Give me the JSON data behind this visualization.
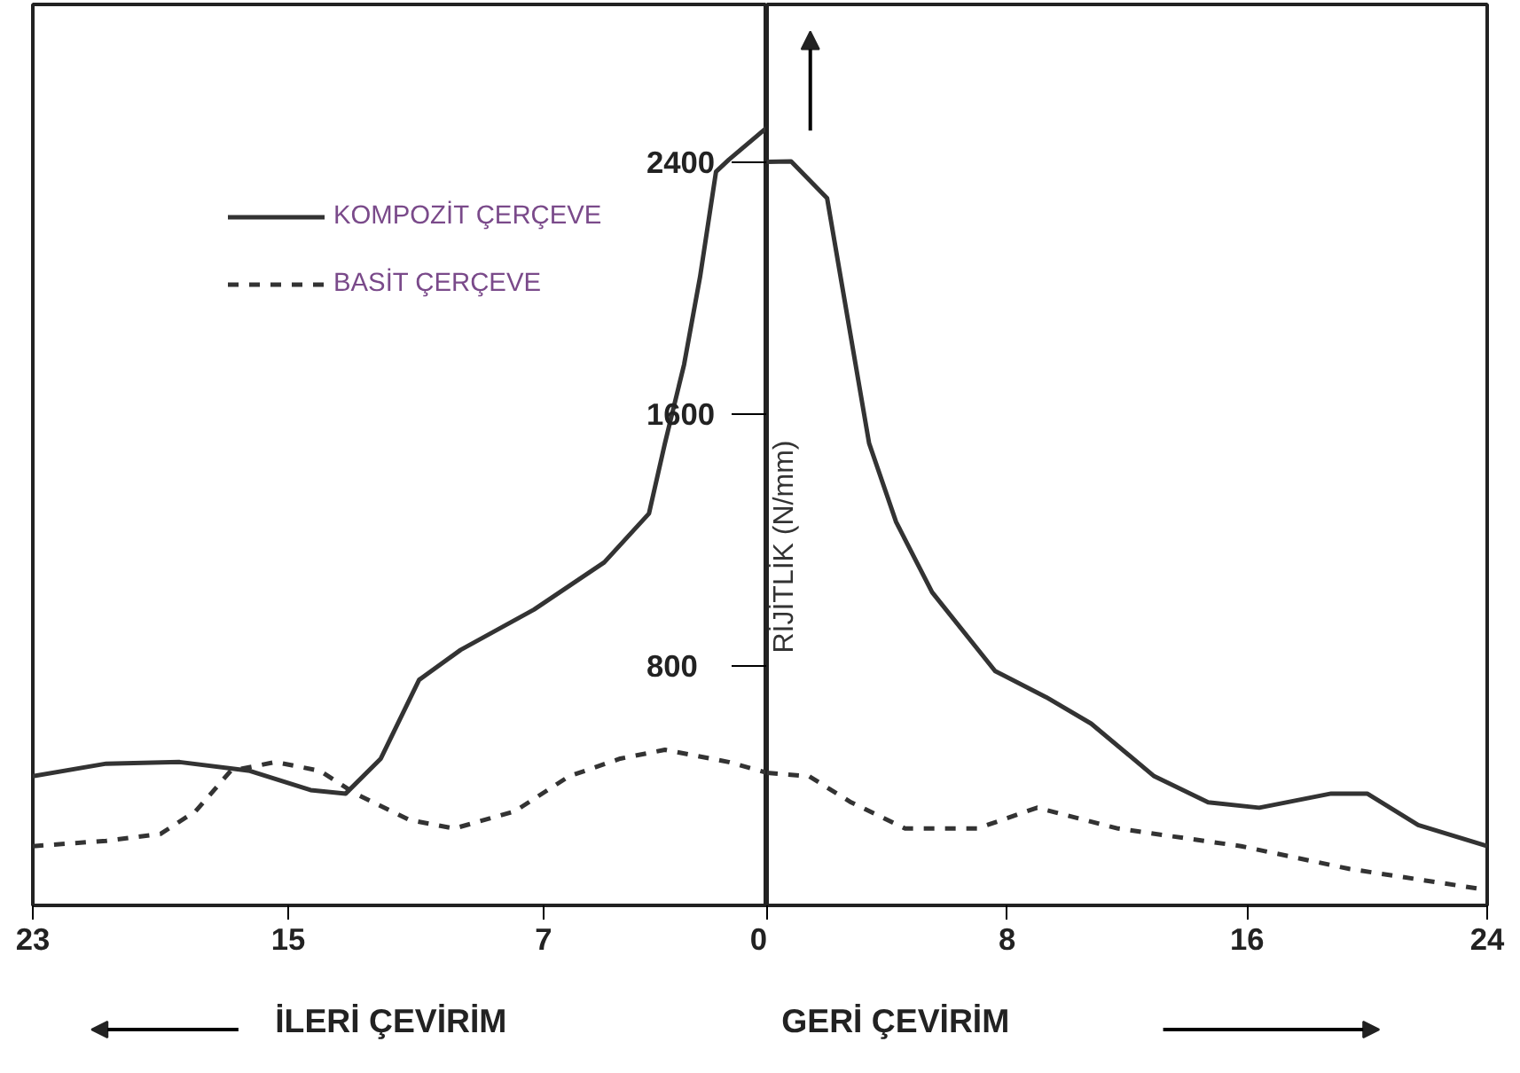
{
  "chart_data": [
    {
      "type": "line",
      "legend": "top left",
      "grid": false,
      "tick_labels": true,
      "xlim": [
        23,
        0
      ],
      "xticks": [
        23,
        15,
        7,
        0
      ],
      "ylim": [
        40,
        2900
      ],
      "yticks": [
        800,
        1600,
        2400
      ],
      "annotations": [
        "İLERİ ÇEVİRİM"
      ],
      "series": [
        {
          "name": "KOMPOZİT ÇERÇEVE",
          "color": "#333333",
          "line_style": "solid",
          "x": [
            23.0,
            20.7,
            18.4,
            16.2,
            14.3,
            13.2,
            12.1,
            10.9,
            9.6,
            7.3,
            5.1,
            3.7,
            3.2,
            2.6,
            2.1,
            1.6,
            1.2,
            0
          ],
          "values": [
            450,
            490,
            495,
            467,
            406,
            395,
            506,
            756,
            851,
            979,
            1129,
            1284,
            1507,
            1757,
            2035,
            2369,
            2407,
            2510
          ]
        },
        {
          "name": "BASİT ÇERÇEVE",
          "color": "#333333",
          "line_style": "dashed",
          "x": [
            23.0,
            20.7,
            19.0,
            17.9,
            16.8,
            15.4,
            14.0,
            12.9,
            11.2,
            9.8,
            7.9,
            6.2,
            4.6,
            3.2,
            1.2,
            0
          ],
          "values": [
            228,
            245,
            267,
            339,
            467,
            495,
            467,
            395,
            311,
            284,
            339,
            450,
            506,
            534,
            495,
            461
          ]
        }
      ]
    },
    {
      "type": "line",
      "ylabel": "RİJİTLİK (N/mm)",
      "grid": false,
      "tick_labels": "x",
      "xlim": [
        0,
        24
      ],
      "xticks": [
        {
          "value": 0,
          "label": null
        },
        8,
        16,
        24
      ],
      "ylim": [
        40,
        2900
      ],
      "annotations": [
        "GERİ ÇEVİRİM"
      ],
      "series": [
        {
          "color": "#333333",
          "line_style": "solid",
          "x": [
            0,
            0.8,
            2.0,
            2.5,
            3.4,
            4.3,
            5.5,
            7.6,
            9.3,
            10.8,
            12.9,
            14.7,
            16.4,
            18.8,
            20.0,
            21.7,
            24.0
          ],
          "values": [
            2400,
            2402,
            2285,
            2007,
            1507,
            1257,
            1034,
            784,
            701,
            617,
            450,
            367,
            350,
            395,
            395,
            295,
            228
          ]
        },
        {
          "color": "#333333",
          "line_style": "dashed",
          "x": [
            0,
            1.4,
            2.8,
            4.6,
            7.0,
            9.0,
            11.7,
            15.8,
            19.4,
            24.0
          ],
          "values": [
            461,
            450,
            367,
            284,
            284,
            350,
            284,
            228,
            156,
            89
          ]
        }
      ]
    }
  ]
}
